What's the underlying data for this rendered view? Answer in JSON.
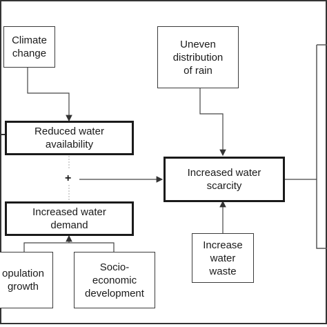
{
  "nodes": {
    "climate_change": "Climate\nchange",
    "uneven_rain": "Uneven\ndistribution\nof rain",
    "reduced_water": "Reduced water\navailability",
    "increased_scarcity": "Increased water\nscarcity",
    "increased_demand": "Increased water\ndemand",
    "increase_waste": "Increase\nwater\nwaste",
    "population_growth": "opulation\ngrowth",
    "socio_economic": "Socio-\neconomic\ndevelopment"
  },
  "operators": {
    "plus_sign": "+"
  }
}
